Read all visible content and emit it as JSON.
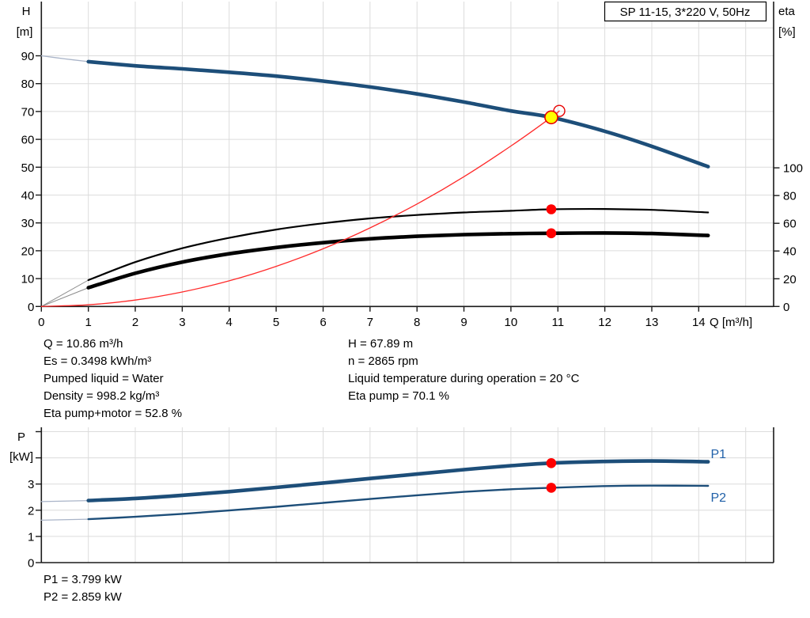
{
  "colors": {
    "curve_blue": "#1d4e79",
    "lead_blue": "#a9b4c8",
    "lead_gray": "#8a8a8a",
    "system_red": "#ff2a2a",
    "marker_red": "#ff0000",
    "marker_red_stroke": "#e80000",
    "marker_yellow": "#ffff00",
    "series_label_blue": "#2060a8",
    "grid": "#dcdcdc",
    "axis": "#1a1a1a"
  },
  "info_left": [
    "Q = 10.86 m³/h",
    "Es = 0.3498 kWh/m³",
    "Pumped liquid = Water",
    "Density = 998.2 kg/m³",
    "Eta pump+motor = 52.8 %"
  ],
  "info_right": [
    "H = 67.89 m",
    "n = 2865 rpm",
    "Liquid temperature during operation = 20 °C",
    "Eta pump = 70.1 %"
  ],
  "power_info": [
    "P1 = 3.799 kW",
    "P2 = 2.859 kW"
  ],
  "chart_data": [
    {
      "type": "line",
      "title_box": "SP 11-15, 3*220 V, 50Hz",
      "x_axis": {
        "label": "Q [m³/h]",
        "min": 0,
        "max": 15.6,
        "ticks": [
          0,
          1,
          2,
          3,
          4,
          5,
          6,
          7,
          8,
          9,
          10,
          11,
          12,
          13,
          14
        ]
      },
      "y_left": {
        "label": "H [m]",
        "label_lines": [
          "H",
          "[m]"
        ],
        "min": 0,
        "max": 110,
        "ticks": [
          0,
          10,
          20,
          30,
          40,
          50,
          60,
          70,
          80,
          90
        ]
      },
      "y_right": {
        "label": "eta [%]",
        "label_lines": [
          "eta",
          "[%]"
        ],
        "min": 0,
        "max": 100,
        "ticks": [
          0,
          20,
          40,
          60,
          80,
          100
        ]
      },
      "series": [
        {
          "name": "head",
          "axis": "left",
          "x": [
            0,
            0.5,
            1,
            2,
            3,
            4,
            5,
            6,
            7,
            8,
            9,
            10,
            10.86,
            12,
            13,
            14.2
          ],
          "y": [
            90,
            88.9,
            87.9,
            86.4,
            85.3,
            84.1,
            82.7,
            80.9,
            78.8,
            76.3,
            73.4,
            70.2,
            67.89,
            62.9,
            57.5,
            50.2
          ]
        },
        {
          "name": "eta_pump",
          "axis": "right",
          "x": [
            0,
            1,
            2,
            3,
            4,
            5,
            6,
            7,
            8,
            9,
            10,
            10.86,
            12,
            13,
            14.2
          ],
          "y": [
            0,
            19,
            32,
            42,
            49.5,
            55.5,
            60,
            63.5,
            66,
            67.8,
            69,
            70.1,
            70.3,
            69.7,
            67.8
          ]
        },
        {
          "name": "eta_pump_motor",
          "axis": "right",
          "x": [
            0,
            1,
            2,
            3,
            4,
            5,
            6,
            7,
            8,
            9,
            10,
            10.86,
            12,
            13,
            14.2
          ],
          "y": [
            0,
            13.5,
            24,
            32,
            38,
            42.5,
            46,
            48.8,
            50.6,
            51.8,
            52.5,
            52.8,
            53,
            52.6,
            51.2
          ]
        },
        {
          "name": "system_curve",
          "axis": "left",
          "x": [
            0,
            1,
            2,
            3,
            4,
            5,
            6,
            7,
            8,
            9,
            10,
            10.86,
            11.03
          ],
          "y": [
            0,
            0.6,
            2.3,
            5.2,
            9.2,
            14.4,
            20.7,
            28.2,
            36.8,
            46.6,
            57.6,
            67.89,
            70.2
          ]
        }
      ],
      "markers": [
        {
          "name": "eta-pump-dot",
          "x": 10.86,
          "y": 70.1,
          "axis": "right",
          "style": "red"
        },
        {
          "name": "eta-pump-motor-dot",
          "x": 10.86,
          "y": 52.8,
          "axis": "right",
          "style": "red"
        },
        {
          "name": "rated-duty-point",
          "x": 11.03,
          "y": 70.2,
          "axis": "left",
          "style": "open"
        },
        {
          "name": "duty-point",
          "x": 10.86,
          "y": 67.89,
          "axis": "left",
          "style": "yellow"
        }
      ]
    },
    {
      "type": "line",
      "x_axis": {
        "min": 0,
        "max": 15.6
      },
      "y_left": {
        "label": "P [kW]",
        "label_lines": [
          "P",
          "[kW]"
        ],
        "min": 0,
        "max": 5.2,
        "ticks": [
          0,
          1,
          2,
          3,
          4,
          5
        ],
        "tick_labels": [
          "0",
          "1",
          "2",
          "3",
          "",
          ""
        ]
      },
      "series": [
        {
          "name": "P1",
          "axis": "left",
          "x": [
            0,
            1,
            2,
            3,
            4,
            5,
            6,
            7,
            8,
            9,
            10,
            10.86,
            12,
            13,
            14.2
          ],
          "y": [
            2.33,
            2.37,
            2.45,
            2.57,
            2.71,
            2.87,
            3.04,
            3.21,
            3.38,
            3.55,
            3.7,
            3.799,
            3.86,
            3.88,
            3.85
          ]
        },
        {
          "name": "P2",
          "axis": "left",
          "x": [
            0,
            1,
            2,
            3,
            4,
            5,
            6,
            7,
            8,
            9,
            10,
            10.86,
            12,
            13,
            14.2
          ],
          "y": [
            1.62,
            1.66,
            1.75,
            1.86,
            1.99,
            2.13,
            2.28,
            2.43,
            2.57,
            2.7,
            2.8,
            2.859,
            2.92,
            2.94,
            2.93
          ]
        }
      ],
      "markers": [
        {
          "name": "p1-dot",
          "x": 10.86,
          "y": 3.799,
          "style": "red"
        },
        {
          "name": "p2-dot",
          "x": 10.86,
          "y": 2.859,
          "style": "red"
        }
      ],
      "annotations": [
        {
          "text": "P1",
          "x": 14.42,
          "y": 4.15
        },
        {
          "text": "P2",
          "x": 14.42,
          "y": 2.5
        }
      ]
    }
  ]
}
